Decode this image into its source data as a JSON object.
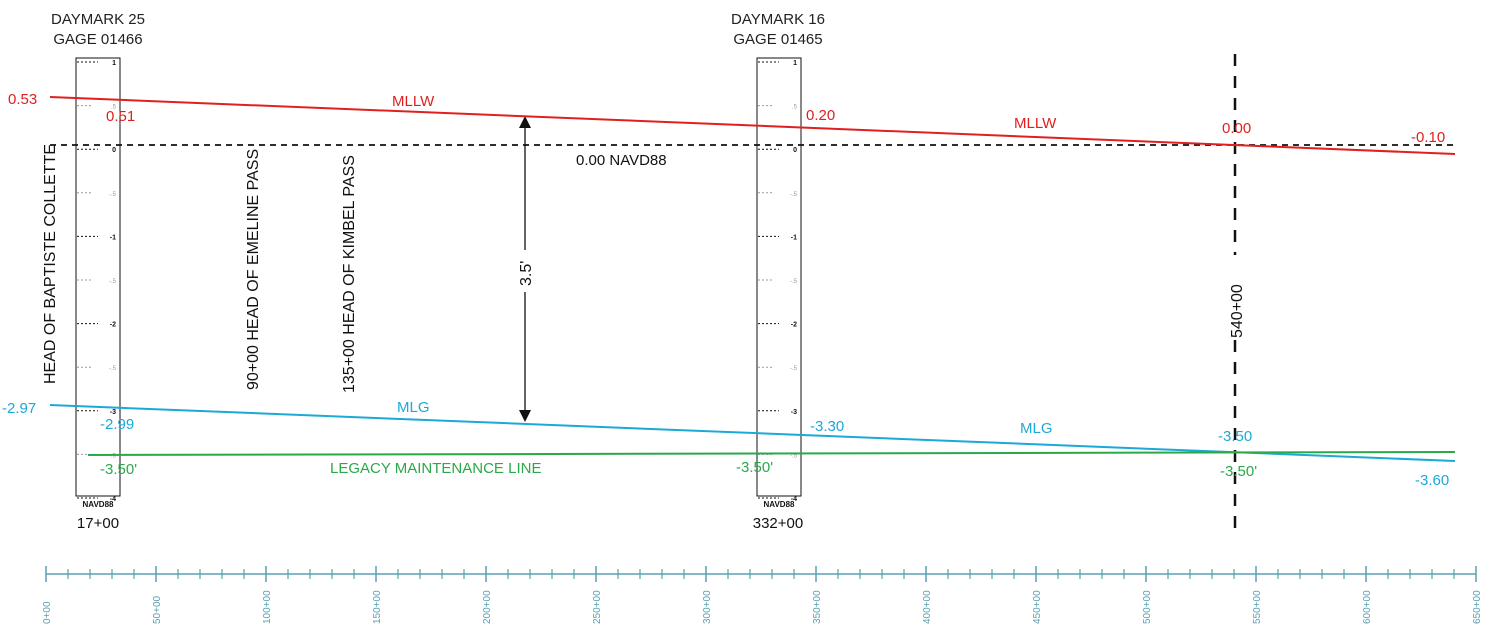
{
  "gages": [
    {
      "name_line1": "DAYMARK 25",
      "name_line2": "GAGE 01466",
      "datum": "NAVD88",
      "station_label": "17+00",
      "station": 17,
      "ticks": [
        "1",
        ".5",
        "0",
        "-.5",
        "-1",
        "-.5",
        "-2",
        "-.5",
        "-3",
        "-.5",
        "-4"
      ]
    },
    {
      "name_line1": "DAYMARK 16",
      "name_line2": "GAGE 01465",
      "datum": "NAVD88",
      "station_label": "332+00",
      "station": 332,
      "ticks": [
        "1",
        ".5",
        "0",
        "-.5",
        "-1",
        "-.5",
        "-2",
        "-.5",
        "-3",
        "-.5",
        "-4"
      ]
    }
  ],
  "landmarks": [
    {
      "text": "HEAD OF BAPTISTE COLLETTE",
      "station": 0
    },
    {
      "text": "90+00 HEAD OF EMELINE PASS",
      "station": 90
    },
    {
      "text": "135+00 HEAD OF KIMBEL PASS",
      "station": 135
    }
  ],
  "reference": {
    "datum_label": "0.00 NAVD88",
    "station_marker": "540+00",
    "station": 540,
    "gap_label": "3.5'"
  },
  "mllw": {
    "label": "MLLW",
    "color": "#e02020",
    "points": [
      {
        "station": 0,
        "elev": 0.53
      },
      {
        "station": 640,
        "elev": -0.1
      }
    ],
    "values": [
      "0.53",
      "0.51",
      "0.20",
      "0.00",
      "-0.10"
    ]
  },
  "mlg": {
    "label": "MLG",
    "color": "#1ba9d9",
    "points": [
      {
        "station": 0,
        "elev": -2.97
      },
      {
        "station": 640,
        "elev": -3.6
      }
    ],
    "values": [
      "-2.97",
      "-2.99",
      "-3.30",
      "-3.50",
      "-3.60"
    ]
  },
  "legacy": {
    "label": "LEGACY MAINTENANCE LINE",
    "color": "#2aa84a",
    "elev": -3.5,
    "values": [
      "-3.50'",
      "-3.50'",
      "-3.50'"
    ]
  },
  "axis": {
    "color": "#5aa0b0",
    "major_ticks": [
      "0+00",
      "50+00",
      "100+00",
      "150+00",
      "200+00",
      "250+00",
      "300+00",
      "350+00",
      "400+00",
      "450+00",
      "500+00",
      "550+00",
      "600+00",
      "650+00"
    ],
    "minor_per_major": 5,
    "range": [
      0,
      650
    ]
  }
}
